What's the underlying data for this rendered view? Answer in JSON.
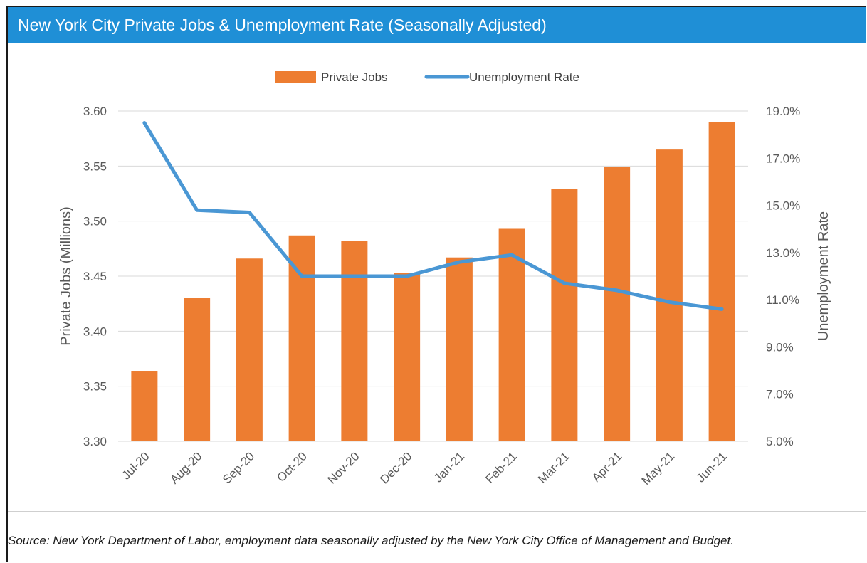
{
  "title": "New York City Private Jobs & Unemployment Rate (Seasonally Adjusted)",
  "source": "Source: New York Department of Labor, employment data seasonally adjusted by the New York City Office of Management and Budget.",
  "colors": {
    "header": "#1f8fd6",
    "bars": "#ed7d31",
    "line": "#4a97d4",
    "grid": "#d9d9d9",
    "axis_text": "#595959"
  },
  "chart_data": {
    "type": "bar",
    "title": "New York City Private Jobs & Unemployment Rate (Seasonally Adjusted)",
    "categories": [
      "Jul-20",
      "Aug-20",
      "Sep-20",
      "Oct-20",
      "Nov-20",
      "Dec-20",
      "Jan-21",
      "Feb-21",
      "Mar-21",
      "Apr-21",
      "May-21",
      "Jun-21"
    ],
    "series": [
      {
        "name": "Private Jobs",
        "type": "bar",
        "axis": "left",
        "values": [
          3.364,
          3.43,
          3.466,
          3.487,
          3.482,
          3.453,
          3.467,
          3.493,
          3.529,
          3.549,
          3.565,
          3.59
        ]
      },
      {
        "name": "Unemployment Rate",
        "type": "line",
        "axis": "right",
        "values": [
          18.5,
          14.8,
          14.7,
          12.0,
          12.0,
          12.0,
          12.6,
          12.9,
          11.7,
          11.4,
          10.9,
          10.6
        ]
      }
    ],
    "ylabel": "Private Jobs (Millions)",
    "ylim": [
      3.3,
      3.6
    ],
    "yticks": [
      "3.30",
      "3.35",
      "3.40",
      "3.45",
      "3.50",
      "3.55",
      "3.60"
    ],
    "y2label": "Unemployment Rate",
    "y2lim": [
      5.0,
      19.0
    ],
    "y2ticks": [
      "5.0%",
      "7.0%",
      "9.0%",
      "11.0%",
      "13.0%",
      "15.0%",
      "17.0%",
      "19.0%"
    ],
    "legend": "top-center",
    "grid": true
  }
}
